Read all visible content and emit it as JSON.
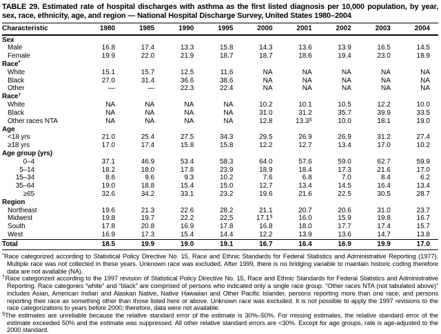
{
  "title": "TABLE 29. Estimated rate of hospital discharges with asthma as the first listed diagnosis per 10,000 population, by year, sex, race, ethnicity, age, and region — National Hospital Discharge Survey, United States 1980–2004",
  "chart_data": {
    "type": "table",
    "title": "Estimated rate of hospital discharges with asthma as the first listed diagnosis per 10,000 population",
    "columns": [
      "Characteristic",
      "1980",
      "1985",
      "1990",
      "1995",
      "2000",
      "2001",
      "2002",
      "2003",
      "2004"
    ],
    "rows": [
      {
        "type": "section",
        "label": "Sex",
        "values": []
      },
      {
        "type": "item",
        "label": "Male",
        "values": [
          "16.8",
          "17.4",
          "13.3",
          "15.8",
          "14.3",
          "13.6",
          "13.9",
          "16.5",
          "14.5"
        ]
      },
      {
        "type": "item",
        "label": "Female",
        "values": [
          "19.9",
          "22.0",
          "21.9",
          "18.7",
          "18.7",
          "18.6",
          "19.4",
          "23.0",
          "18.9"
        ]
      },
      {
        "type": "section",
        "label": "Race",
        "label_sup": "*",
        "values": []
      },
      {
        "type": "item",
        "label": "White",
        "values": [
          "15.1",
          "15.7",
          "12.5",
          "11.6",
          "NA",
          "NA",
          "NA",
          "NA",
          "NA"
        ]
      },
      {
        "type": "item",
        "label": "Black",
        "values": [
          "27.0",
          "31.4",
          "36.6",
          "38.6",
          "NA",
          "NA",
          "NA",
          "NA",
          "NA"
        ]
      },
      {
        "type": "item",
        "label": "Other",
        "values": [
          "—",
          "—",
          "22.3",
          "22.4",
          "NA",
          "NA",
          "NA",
          "NA",
          "NA"
        ]
      },
      {
        "type": "section",
        "label": "Race",
        "label_sup": "†",
        "values": []
      },
      {
        "type": "item",
        "label": "White",
        "values": [
          "NA",
          "NA",
          "NA",
          "NA",
          "10.2",
          "10.1",
          "10.5",
          "12.2",
          "10.0"
        ]
      },
      {
        "type": "item",
        "label": "Black",
        "values": [
          "NA",
          "NA",
          "NA",
          "NA",
          "31.0",
          "31.2",
          "35.7",
          "39.9",
          "33.5"
        ]
      },
      {
        "type": "item",
        "label": "Other races NTA",
        "values": [
          "NA",
          "NA",
          "NA",
          "NA",
          "12.8",
          "13.3§",
          "10.0",
          "18.1",
          "19.0"
        ]
      },
      {
        "type": "section",
        "label": "Age",
        "values": []
      },
      {
        "type": "item",
        "label": "<18 yrs",
        "values": [
          "21.0",
          "25.4",
          "27.5",
          "34.3",
          "29.5",
          "26.9",
          "26.9",
          "31.2",
          "27.4"
        ]
      },
      {
        "type": "item",
        "label": "≥18 yrs",
        "values": [
          "17.0",
          "17.4",
          "15.8",
          "15.8",
          "12.2",
          "12.7",
          "13.4",
          "17.0",
          "10.2"
        ]
      },
      {
        "type": "section",
        "label": "Age group (yrs)",
        "values": []
      },
      {
        "type": "item-num",
        "label": "0–4",
        "values": [
          "37.1",
          "46.9",
          "53.4",
          "58.3",
          "64.0",
          "57.6",
          "59.0",
          "62.7",
          "59.9"
        ]
      },
      {
        "type": "item-num",
        "label": "5–14",
        "values": [
          "18.2",
          "18.0",
          "17.8",
          "23.9",
          "18.9",
          "18.4",
          "17.3",
          "21.6",
          "17.0"
        ]
      },
      {
        "type": "item-num",
        "label": "15–34",
        "values": [
          "8.6",
          "9.6",
          "9.3",
          "10.2",
          "7.6",
          "6.8",
          "7.0",
          "8.4",
          "6.2"
        ]
      },
      {
        "type": "item-num",
        "label": "35–64",
        "values": [
          "19.0",
          "18.8",
          "15.4",
          "15.0",
          "12.7",
          "13.4",
          "14.5",
          "16.4",
          "13.4"
        ]
      },
      {
        "type": "item-num",
        "label": "≥65",
        "values": [
          "32.6",
          "34.2",
          "33.1",
          "23.2",
          "19.6",
          "21.6",
          "22.5",
          "30.5",
          "28.7"
        ]
      },
      {
        "type": "section",
        "label": "Region",
        "values": []
      },
      {
        "type": "item",
        "label": "Northeast",
        "values": [
          "19.6",
          "21.3",
          "22.6",
          "28.2",
          "21.1",
          "20.7",
          "20.6",
          "31.0",
          "23.7"
        ]
      },
      {
        "type": "item",
        "label": "Midwest",
        "values": [
          "19.8",
          "19.7",
          "22.2",
          "22.5",
          "17.1§",
          "16.0",
          "15.9",
          "19.8",
          "16.7"
        ]
      },
      {
        "type": "item",
        "label": "South",
        "values": [
          "17.8",
          "20.8",
          "16.9",
          "17.8",
          "16.8",
          "18.0",
          "17.7",
          "17.4",
          "15.7"
        ]
      },
      {
        "type": "item",
        "label": "West",
        "values": [
          "16.9",
          "17.3",
          "15.4",
          "14.4",
          "12.2",
          "13.9",
          "13.6",
          "14.7",
          "13.8"
        ]
      },
      {
        "type": "total",
        "label": "Total",
        "values": [
          "18.5",
          "19.9",
          "19.0",
          "19.1",
          "16.7",
          "16.4",
          "16.9",
          "19.9",
          "17.0"
        ]
      }
    ]
  },
  "footnotes": [
    {
      "marker": "*",
      "text": "Race categorized according to Statistical Policy Directive No. 15, Race and Ethnic Standards for Federal Statistics and Administrative Reporting (1977). Multiple race was not collected in these years. Unknown race was excluded. After 1999, there is no bridging variable to maintain historic coding therefore data are not available (NA)."
    },
    {
      "marker": "†",
      "text": "Race categorized according to the 1997 revision of Statistical Policy Directive No. 15, Race and Ethnic Standards for Federal Statistics and Administrative Reporting. Race categories “white” and “black” are comprised of persons who indicated only a single race group. “Other races NTA (not tabulated above)” includes Asian, American Indian and Alaskan Native, Native Hawaiian and Other Pacific Islander, persons reporting more than one race, and persons reporting their race as something other than those listed here or above. Unknown race was excluded. It is not possible to apply the 1997 revisions to the race categorizations to years before 2000; therefore, data were not available."
    },
    {
      "marker": "§",
      "text": "The estimates are unreliable because the relative standard error of the estimate is 30%–50%. For missing estimates, the relative standard error of the estimate exceeded 50% and the estimate was suppressed. All other relative standard errors are <30%. Except for age groups, rate is age-adjusted to the 2000 standard."
    }
  ]
}
